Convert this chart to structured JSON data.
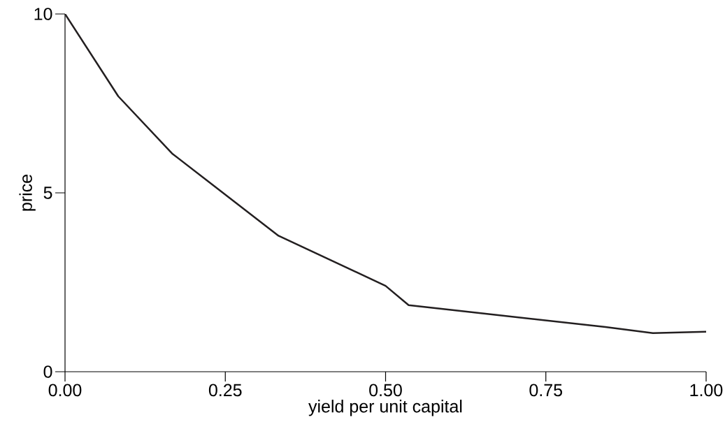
{
  "chart_data": {
    "type": "line",
    "xlabel": "yield per unit capital",
    "ylabel": "price",
    "x": [
      0,
      0.083,
      0.167,
      0.333,
      0.5,
      0.536,
      0.656,
      0.843,
      0.917,
      1.0
    ],
    "series": [
      {
        "color": "#231f20",
        "values": [
          10,
          7.7,
          6.1,
          3.8,
          2.4,
          1.86,
          1.62,
          1.25,
          1.08,
          1.12
        ]
      }
    ],
    "xlim": [
      0,
      1
    ],
    "ylim": [
      0,
      10
    ],
    "xticks": [
      {
        "value": 0,
        "label": "0.00"
      },
      0.25,
      {
        "value": 0.5,
        "label": "0.50"
      },
      0.75,
      {
        "value": 1,
        "label": "1.00"
      }
    ],
    "yticks": [
      0,
      5,
      10
    ],
    "grid": false,
    "marker": "none",
    "line_style": "solid"
  }
}
